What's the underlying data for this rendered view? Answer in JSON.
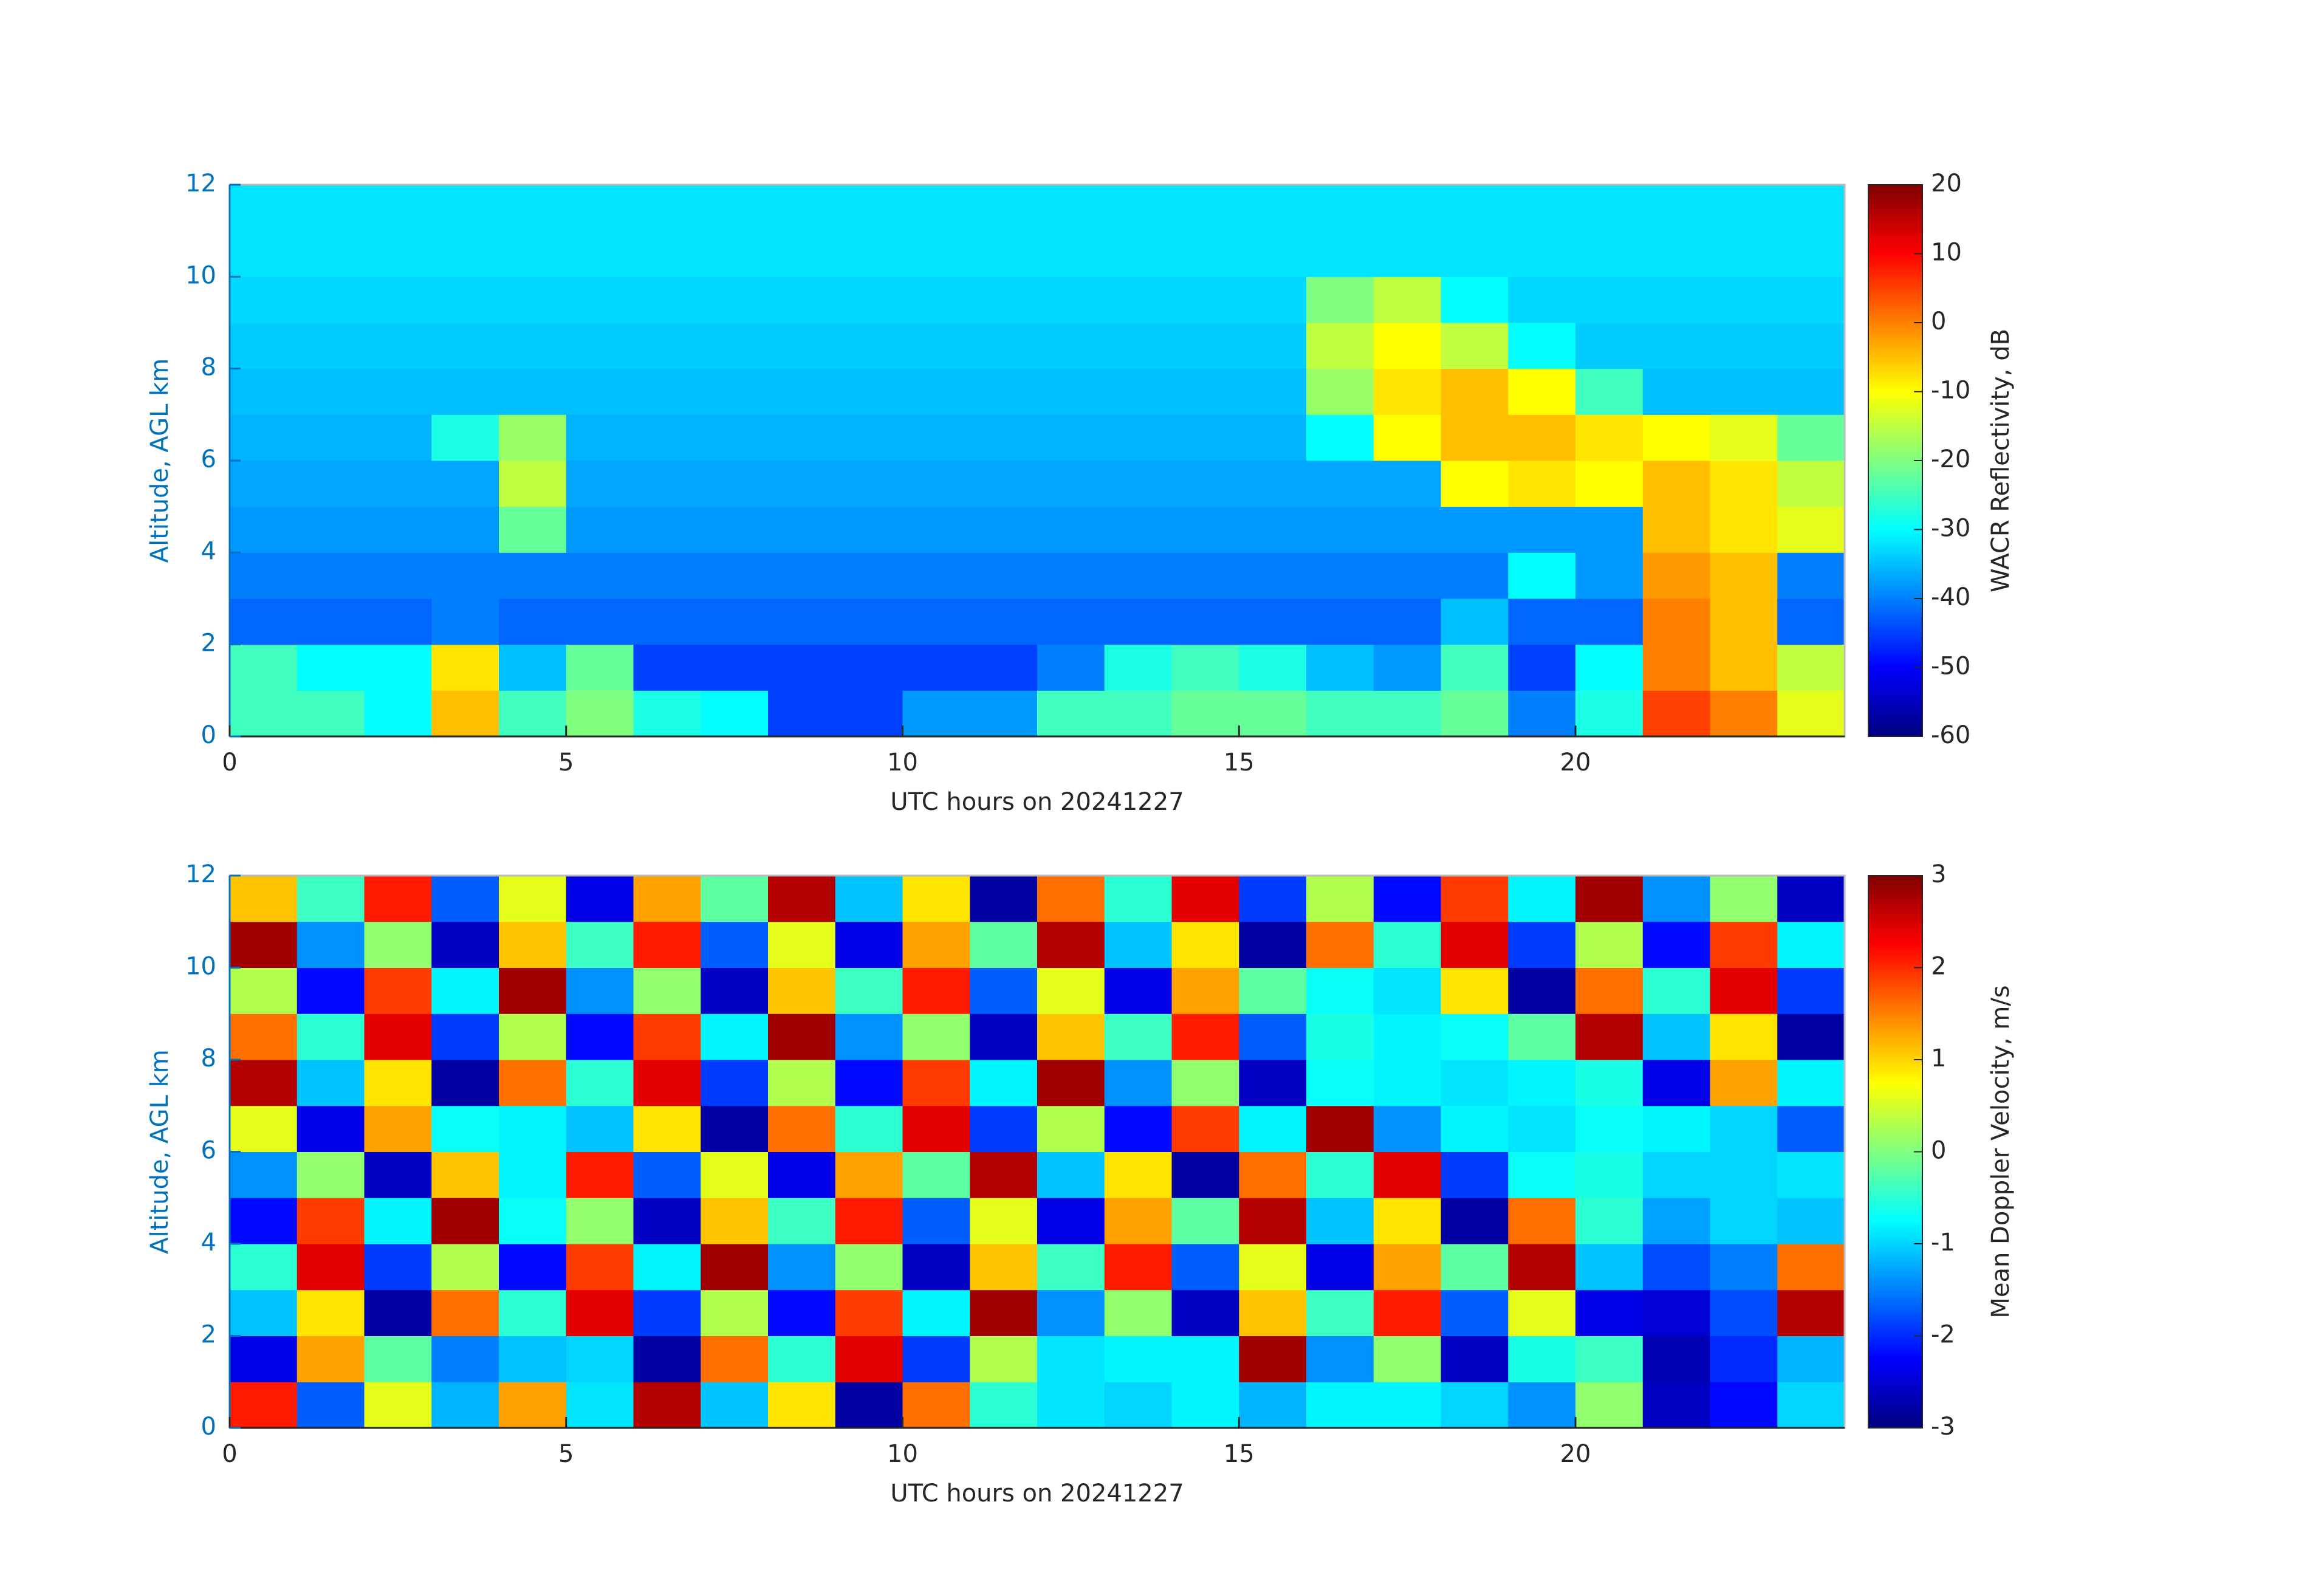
{
  "chart_data": [
    {
      "type": "heatmap",
      "xlabel": "UTC hours on 20241227",
      "ylabel": "Altitude, AGL km",
      "colorbar_label": "WACR Reflectivity, dB",
      "colormap": "jet",
      "x": [
        0.5,
        1.5,
        2.5,
        3.5,
        4.5,
        5.5,
        6.5,
        7.5,
        8.5,
        9.5,
        10.5,
        11.5,
        12.5,
        13.5,
        14.5,
        15.5,
        16.5,
        17.5,
        18.5,
        19.5,
        20.5,
        21.5,
        22.5,
        23.5
      ],
      "y": [
        0.5,
        1.5,
        2.5,
        3.5,
        4.5,
        5.5,
        6.5,
        7.5,
        8.5,
        9.5,
        10.5,
        11.5
      ],
      "values": [
        [
          -25,
          -25,
          -30,
          -5,
          -25,
          -20,
          -28,
          -30,
          -45,
          -45,
          -38,
          -38,
          -25,
          -25,
          -22,
          -22,
          -25,
          -25,
          -22,
          -40,
          -28,
          5,
          0,
          -12
        ],
        [
          -25,
          -30,
          -30,
          -8,
          -35,
          -22,
          -45,
          -45,
          -45,
          -45,
          -45,
          -45,
          -40,
          -28,
          -25,
          -28,
          -35,
          -38,
          -25,
          -45,
          -30,
          0,
          -5,
          -15
        ],
        [
          -42,
          -42,
          -42,
          -40,
          -42,
          -42,
          -42,
          -42,
          -42,
          -42,
          -42,
          -42,
          -42,
          -42,
          -42,
          -42,
          -42,
          -42,
          -35,
          -42,
          -42,
          0,
          -5,
          -42
        ],
        [
          -40,
          -40,
          -40,
          -40,
          -40,
          -40,
          -40,
          -40,
          -40,
          -40,
          -40,
          -40,
          -40,
          -40,
          -40,
          -40,
          -40,
          -40,
          -40,
          -30,
          -38,
          -2,
          -5,
          -40
        ],
        [
          -38,
          -38,
          -38,
          -38,
          -22,
          -38,
          -38,
          -38,
          -38,
          -38,
          -38,
          -38,
          -38,
          -38,
          -38,
          -38,
          -38,
          -38,
          -38,
          -38,
          -38,
          -5,
          -8,
          -12
        ],
        [
          -37,
          -37,
          -37,
          -37,
          -15,
          -37,
          -37,
          -37,
          -37,
          -37,
          -37,
          -37,
          -37,
          -37,
          -37,
          -37,
          -37,
          -37,
          -10,
          -8,
          -10,
          -5,
          -8,
          -15
        ],
        [
          -36,
          -36,
          -36,
          -28,
          -18,
          -36,
          -36,
          -36,
          -36,
          -36,
          -36,
          -36,
          -36,
          -36,
          -36,
          -36,
          -30,
          -10,
          -5,
          -5,
          -8,
          -10,
          -12,
          -22
        ],
        [
          -35,
          -35,
          -35,
          -35,
          -35,
          -35,
          -35,
          -35,
          -35,
          -35,
          -35,
          -35,
          -35,
          -35,
          -35,
          -35,
          -18,
          -8,
          -5,
          -10,
          -25,
          -35,
          -35,
          -35
        ],
        [
          -34,
          -34,
          -34,
          -34,
          -34,
          -34,
          -34,
          -34,
          -34,
          -34,
          -34,
          -34,
          -34,
          -34,
          -34,
          -34,
          -15,
          -10,
          -15,
          -30,
          -34,
          -34,
          -34,
          -34
        ],
        [
          -33,
          -33,
          -33,
          -33,
          -33,
          -33,
          -33,
          -33,
          -33,
          -33,
          -33,
          -33,
          -33,
          -33,
          -33,
          -33,
          -20,
          -15,
          -30,
          -33,
          -33,
          -33,
          -33,
          -33
        ],
        [
          -32,
          -32,
          -32,
          -32,
          -32,
          -32,
          -32,
          -32,
          -32,
          -32,
          -32,
          -32,
          -32,
          -32,
          -32,
          -32,
          -32,
          -32,
          -32,
          -32,
          -32,
          -32,
          -32,
          -32
        ],
        [
          -32,
          -32,
          -32,
          -32,
          -32,
          -32,
          -32,
          -32,
          -32,
          -32,
          -32,
          -32,
          -32,
          -32,
          -32,
          -32,
          -32,
          -32,
          -32,
          -32,
          -32,
          -32,
          -32,
          -32
        ]
      ],
      "xlim": [
        0,
        24
      ],
      "xticks": [
        0,
        5,
        10,
        15,
        20
      ],
      "ylim": [
        0,
        12
      ],
      "yticks": [
        0,
        2,
        4,
        6,
        8,
        10,
        12
      ],
      "clim": [
        -60,
        20
      ],
      "cticks": [
        -60,
        -50,
        -40,
        -30,
        -20,
        -10,
        0,
        10,
        20
      ]
    },
    {
      "type": "heatmap",
      "xlabel": "UTC hours on 20241227",
      "ylabel": "Altitude, AGL km",
      "colorbar_label": "Mean Doppler Velocity, m/s",
      "colormap": "jet",
      "x": [
        0.5,
        1.5,
        2.5,
        3.5,
        4.5,
        5.5,
        6.5,
        7.5,
        8.5,
        9.5,
        10.5,
        11.5,
        12.5,
        13.5,
        14.5,
        15.5,
        16.5,
        17.5,
        18.5,
        19.5,
        20.5,
        21.5,
        22.5,
        23.5
      ],
      "y": [
        0.5,
        1.5,
        2.5,
        3.5,
        4.5,
        5.5,
        6.5,
        7.5,
        8.5,
        9.5,
        10.5,
        11.5
      ],
      "values": [
        [
          2.1,
          -1.7,
          0.6,
          -1.2,
          1.3,
          -0.9,
          2.7,
          -1.1,
          0.9,
          -2.8,
          1.6,
          -0.5,
          -0.9,
          -1.0,
          -0.8,
          -1.2,
          -0.8,
          -0.8,
          -1.0,
          -1.4,
          0.1,
          -2.6,
          -2.2,
          -1.0
        ],
        [
          -2.4,
          1.3,
          -0.2,
          -1.5,
          -1.1,
          -1.0,
          -2.8,
          1.6,
          -0.5,
          2.4,
          -1.9,
          0.3,
          -0.9,
          -0.8,
          -0.8,
          2.8,
          -1.4,
          0.1,
          -2.6,
          -0.6,
          -0.4,
          -2.7,
          -2.0,
          -1.2
        ],
        [
          -1.1,
          0.9,
          -2.8,
          1.6,
          -0.5,
          2.4,
          -1.9,
          0.3,
          -2.2,
          1.9,
          -0.8,
          2.8,
          -1.4,
          0.1,
          -2.6,
          1.1,
          -0.4,
          2.1,
          -1.7,
          0.6,
          -2.4,
          -2.5,
          -1.8,
          2.7
        ],
        [
          -0.5,
          2.4,
          -1.9,
          0.3,
          -2.2,
          1.9,
          -0.8,
          2.8,
          -1.4,
          0.1,
          -2.6,
          1.1,
          -0.4,
          2.1,
          -1.7,
          0.6,
          -2.4,
          1.3,
          -0.2,
          2.7,
          -1.1,
          -1.8,
          -1.5,
          1.6
        ],
        [
          -2.2,
          1.9,
          -0.8,
          2.8,
          -0.7,
          0.1,
          -2.6,
          1.1,
          -0.4,
          2.1,
          -1.7,
          0.6,
          -2.4,
          1.3,
          -0.2,
          2.7,
          -1.1,
          0.9,
          -2.8,
          1.6,
          -0.5,
          -1.3,
          -1.0,
          -1.1
        ],
        [
          -1.4,
          0.1,
          -2.6,
          1.1,
          -0.8,
          2.1,
          -1.7,
          0.6,
          -2.4,
          1.3,
          -0.2,
          2.7,
          -1.1,
          0.9,
          -2.8,
          1.6,
          -0.5,
          2.4,
          -1.9,
          -0.7,
          -0.6,
          -1.0,
          -1.0,
          -0.9
        ],
        [
          0.6,
          -2.4,
          1.3,
          -0.7,
          -0.8,
          -1.1,
          0.9,
          -2.8,
          1.6,
          -0.5,
          2.4,
          -1.9,
          0.3,
          -2.2,
          1.9,
          -0.8,
          2.8,
          -1.4,
          -0.8,
          -0.9,
          -0.7,
          -0.8,
          -1.0,
          -1.7
        ],
        [
          2.7,
          -1.1,
          0.9,
          -2.8,
          1.6,
          -0.5,
          2.4,
          -1.9,
          0.3,
          -2.2,
          1.9,
          -0.8,
          2.8,
          -1.4,
          0.1,
          -2.6,
          -0.7,
          -0.8,
          -0.9,
          -0.8,
          -0.6,
          -2.4,
          1.3,
          -0.8
        ],
        [
          1.6,
          -0.5,
          2.4,
          -1.9,
          0.3,
          -2.2,
          1.9,
          -0.8,
          2.8,
          -1.4,
          0.1,
          -2.6,
          1.1,
          -0.4,
          2.1,
          -1.7,
          -0.6,
          -0.8,
          -0.7,
          -0.2,
          2.7,
          -1.1,
          0.9,
          -2.8
        ],
        [
          0.3,
          -2.2,
          1.9,
          -0.8,
          2.8,
          -1.4,
          0.1,
          -2.6,
          1.1,
          -0.4,
          2.1,
          -1.7,
          0.6,
          -2.4,
          1.3,
          -0.2,
          -0.7,
          -0.9,
          0.9,
          -2.8,
          1.6,
          -0.5,
          2.4,
          -1.9
        ],
        [
          2.8,
          -1.4,
          0.1,
          -2.6,
          1.1,
          -0.4,
          2.1,
          -1.7,
          0.6,
          -2.4,
          1.3,
          -0.2,
          2.7,
          -1.1,
          0.9,
          -2.8,
          1.6,
          -0.5,
          2.4,
          -1.9,
          0.3,
          -2.2,
          1.9,
          -0.8
        ],
        [
          1.1,
          -0.4,
          2.1,
          -1.7,
          0.6,
          -2.4,
          1.3,
          -0.2,
          2.7,
          -1.1,
          0.9,
          -2.8,
          1.6,
          -0.5,
          2.4,
          -1.9,
          0.3,
          -2.2,
          1.9,
          -0.8,
          2.8,
          -1.4,
          0.1,
          -2.6
        ]
      ],
      "xlim": [
        0,
        24
      ],
      "xticks": [
        0,
        5,
        10,
        15,
        20
      ],
      "ylim": [
        0,
        12
      ],
      "yticks": [
        0,
        2,
        4,
        6,
        8,
        10,
        12
      ],
      "clim": [
        -3,
        3
      ],
      "cticks": [
        -3,
        -2,
        -1,
        0,
        1,
        2,
        3
      ]
    }
  ]
}
